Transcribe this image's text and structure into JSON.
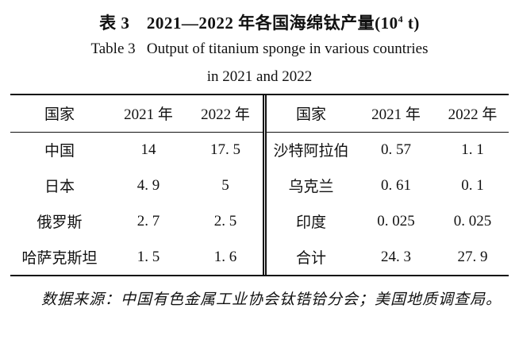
{
  "title": {
    "zh_prefix": "表 3　2021—2022 年各国海绵钛产量(10",
    "zh_sup": "4",
    "zh_suffix": " t)",
    "en_line1": "Table 3   Output of titanium sponge in various countries",
    "en_line2": "in 2021 and 2022"
  },
  "table": {
    "left": {
      "headers": [
        "国家",
        "2021 年",
        "2022 年"
      ],
      "rows": [
        [
          "中国",
          "14",
          "17. 5"
        ],
        [
          "日本",
          "4. 9",
          "5"
        ],
        [
          "俄罗斯",
          "2. 7",
          "2. 5"
        ],
        [
          "哈萨克斯坦",
          "1. 5",
          "1. 6"
        ]
      ]
    },
    "right": {
      "headers": [
        "国家",
        "2021 年",
        "2022 年"
      ],
      "rows": [
        [
          "沙特阿拉伯",
          "0. 57",
          "1. 1"
        ],
        [
          "乌克兰",
          "0. 61",
          "0. 1"
        ],
        [
          "印度",
          "0. 025",
          "0. 025"
        ],
        [
          "合计",
          "24. 3",
          "27. 9"
        ]
      ]
    }
  },
  "footnote": "数据来源：中国有色金属工业协会钛锆铪分会；美国地质调查局。",
  "colors": {
    "text": "#111111",
    "background": "#ffffff",
    "rule": "#111111"
  }
}
